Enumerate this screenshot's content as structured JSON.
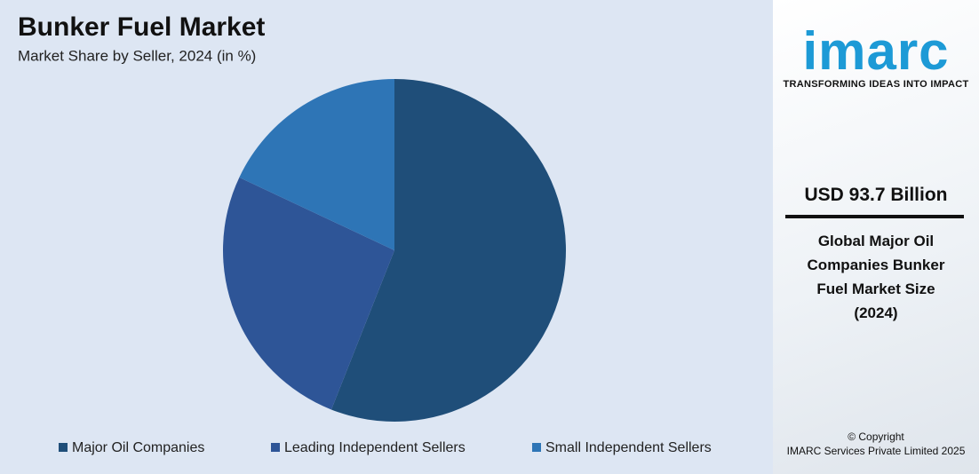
{
  "chart_data": {
    "type": "pie",
    "title": "Bunker Fuel Market",
    "subtitle": "Market Share by Seller, 2024 (in %)",
    "categories": [
      "Major Oil Companies",
      "Leading Independent Sellers",
      "Small Independent Sellers"
    ],
    "values": [
      56,
      26,
      18
    ],
    "colors": [
      "#1f4e79",
      "#2e5597",
      "#2e75b6"
    ]
  },
  "sidebar": {
    "logo": "imarc",
    "tagline": "TRANSFORMING IDEAS INTO IMPACT",
    "highlight": "USD 93.7 Billion",
    "description": "Global Major Oil Companies Bunker Fuel Market Size (2024)",
    "copyright": "© Copyright",
    "company": "IMARC Services Private Limited 2025"
  }
}
